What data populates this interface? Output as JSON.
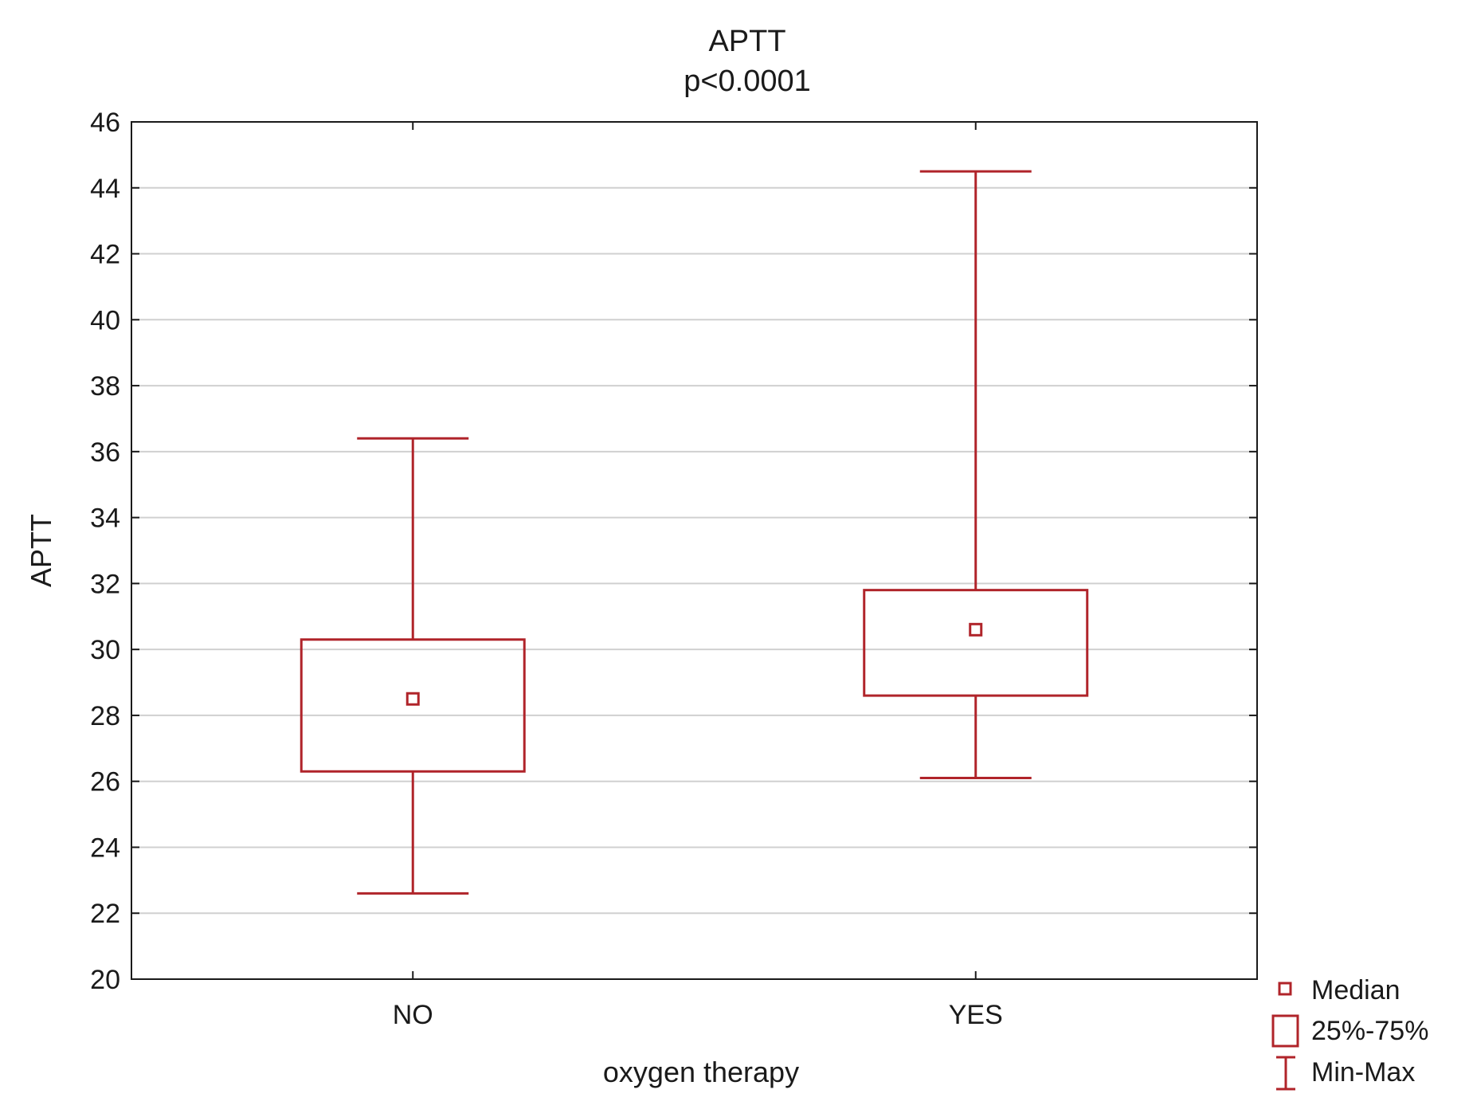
{
  "colors": {
    "series": "#b0242a",
    "grid": "#d0d0d0",
    "axis": "#1a1a1a"
  },
  "chart_data": {
    "type": "boxplot",
    "title": "APTT",
    "subtitle": "p<0.0001",
    "xlabel": "oxygen therapy",
    "ylabel": "APTT",
    "ylim": [
      20,
      46
    ],
    "yticks": [
      20,
      22,
      24,
      26,
      28,
      30,
      32,
      34,
      36,
      38,
      40,
      42,
      44,
      46
    ],
    "grid": true,
    "legend_position": "bottom-right",
    "categories": [
      "NO",
      "YES"
    ],
    "boxes": [
      {
        "category": "NO",
        "min": 22.6,
        "q1": 26.3,
        "median": 28.5,
        "q3": 30.3,
        "max": 36.4
      },
      {
        "category": "YES",
        "min": 26.1,
        "q1": 28.6,
        "median": 30.6,
        "q3": 31.8,
        "max": 44.5
      }
    ],
    "legend": [
      {
        "label": "Median",
        "symbol": "small-square"
      },
      {
        "label": "25%-75%",
        "symbol": "box"
      },
      {
        "label": "Min-Max",
        "symbol": "whisker"
      }
    ]
  }
}
